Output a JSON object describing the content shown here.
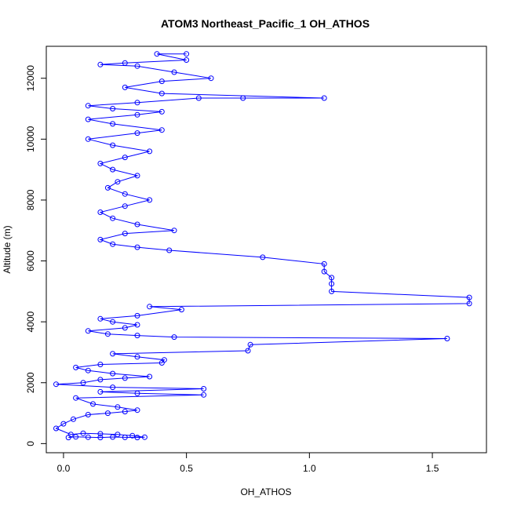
{
  "chart_data": {
    "type": "scatter",
    "title": "ATOM3 Northeast_Pacific_1 OH_ATHOS",
    "xlabel": "OH_ATHOS",
    "ylabel": "Altitude (m)",
    "xlim": [
      -0.07,
      1.72
    ],
    "ylim": [
      -300,
      13050
    ],
    "x_ticks": [
      {
        "value": 0.0,
        "label": "0.0"
      },
      {
        "value": 0.5,
        "label": "0.5"
      },
      {
        "value": 1.0,
        "label": "1.0"
      },
      {
        "value": 1.5,
        "label": "1.5"
      }
    ],
    "y_ticks": [
      {
        "value": 0,
        "label": "0"
      },
      {
        "value": 2000,
        "label": "2000"
      },
      {
        "value": 4000,
        "label": "4000"
      },
      {
        "value": 6000,
        "label": "6000"
      },
      {
        "value": 8000,
        "label": "8000"
      },
      {
        "value": 10000,
        "label": "10000"
      },
      {
        "value": 12000,
        "label": "12000"
      }
    ],
    "color": "#0000ff",
    "marker": "open-circle",
    "connected": true,
    "grid": false,
    "series": [
      {
        "points": [
          [
            0.02,
            200
          ],
          [
            0.05,
            220
          ],
          [
            0.1,
            210
          ],
          [
            0.15,
            200
          ],
          [
            0.2,
            215
          ],
          [
            0.25,
            205
          ],
          [
            0.3,
            200
          ],
          [
            0.33,
            210
          ],
          [
            0.28,
            260
          ],
          [
            0.22,
            300
          ],
          [
            0.15,
            320
          ],
          [
            0.08,
            340
          ],
          [
            0.03,
            300
          ],
          [
            -0.03,
            500
          ],
          [
            0.0,
            650
          ],
          [
            0.04,
            800
          ],
          [
            0.1,
            950
          ],
          [
            0.18,
            1000
          ],
          [
            0.25,
            1050
          ],
          [
            0.3,
            1100
          ],
          [
            0.22,
            1200
          ],
          [
            0.12,
            1300
          ],
          [
            0.05,
            1500
          ],
          [
            0.57,
            1600
          ],
          [
            0.3,
            1650
          ],
          [
            0.15,
            1700
          ],
          [
            0.57,
            1800
          ],
          [
            0.2,
            1850
          ],
          [
            -0.03,
            1950
          ],
          [
            0.08,
            2000
          ],
          [
            0.15,
            2100
          ],
          [
            0.25,
            2150
          ],
          [
            0.35,
            2200
          ],
          [
            0.2,
            2300
          ],
          [
            0.1,
            2400
          ],
          [
            0.05,
            2500
          ],
          [
            0.15,
            2600
          ],
          [
            0.4,
            2650
          ],
          [
            0.41,
            2750
          ],
          [
            0.3,
            2850
          ],
          [
            0.2,
            2950
          ],
          [
            0.75,
            3050
          ],
          [
            0.76,
            3250
          ],
          [
            1.56,
            3450
          ],
          [
            0.45,
            3500
          ],
          [
            0.3,
            3550
          ],
          [
            0.18,
            3600
          ],
          [
            0.1,
            3700
          ],
          [
            0.25,
            3800
          ],
          [
            0.3,
            3900
          ],
          [
            0.2,
            4000
          ],
          [
            0.15,
            4100
          ],
          [
            0.3,
            4200
          ],
          [
            0.48,
            4400
          ],
          [
            0.35,
            4500
          ],
          [
            1.65,
            4600
          ],
          [
            1.65,
            4800
          ],
          [
            1.09,
            5000
          ],
          [
            1.09,
            5250
          ],
          [
            1.09,
            5450
          ],
          [
            1.06,
            5650
          ],
          [
            1.06,
            5900
          ],
          [
            0.81,
            6120
          ],
          [
            0.43,
            6350
          ],
          [
            0.3,
            6450
          ],
          [
            0.2,
            6550
          ],
          [
            0.15,
            6700
          ],
          [
            0.25,
            6900
          ],
          [
            0.45,
            7000
          ],
          [
            0.3,
            7200
          ],
          [
            0.2,
            7400
          ],
          [
            0.15,
            7600
          ],
          [
            0.25,
            7800
          ],
          [
            0.35,
            8000
          ],
          [
            0.25,
            8200
          ],
          [
            0.18,
            8400
          ],
          [
            0.22,
            8600
          ],
          [
            0.3,
            8800
          ],
          [
            0.2,
            9000
          ],
          [
            0.15,
            9200
          ],
          [
            0.25,
            9400
          ],
          [
            0.35,
            9600
          ],
          [
            0.2,
            9800
          ],
          [
            0.1,
            10000
          ],
          [
            0.3,
            10200
          ],
          [
            0.4,
            10300
          ],
          [
            0.2,
            10500
          ],
          [
            0.1,
            10650
          ],
          [
            0.3,
            10800
          ],
          [
            0.4,
            10900
          ],
          [
            0.2,
            11000
          ],
          [
            0.1,
            11100
          ],
          [
            0.3,
            11200
          ],
          [
            0.55,
            11350
          ],
          [
            0.73,
            11350
          ],
          [
            1.06,
            11350
          ],
          [
            0.4,
            11500
          ],
          [
            0.25,
            11700
          ],
          [
            0.4,
            11900
          ],
          [
            0.6,
            12000
          ],
          [
            0.45,
            12200
          ],
          [
            0.3,
            12400
          ],
          [
            0.15,
            12450
          ],
          [
            0.25,
            12500
          ],
          [
            0.5,
            12600
          ],
          [
            0.38,
            12800
          ],
          [
            0.5,
            12800
          ]
        ]
      }
    ]
  }
}
